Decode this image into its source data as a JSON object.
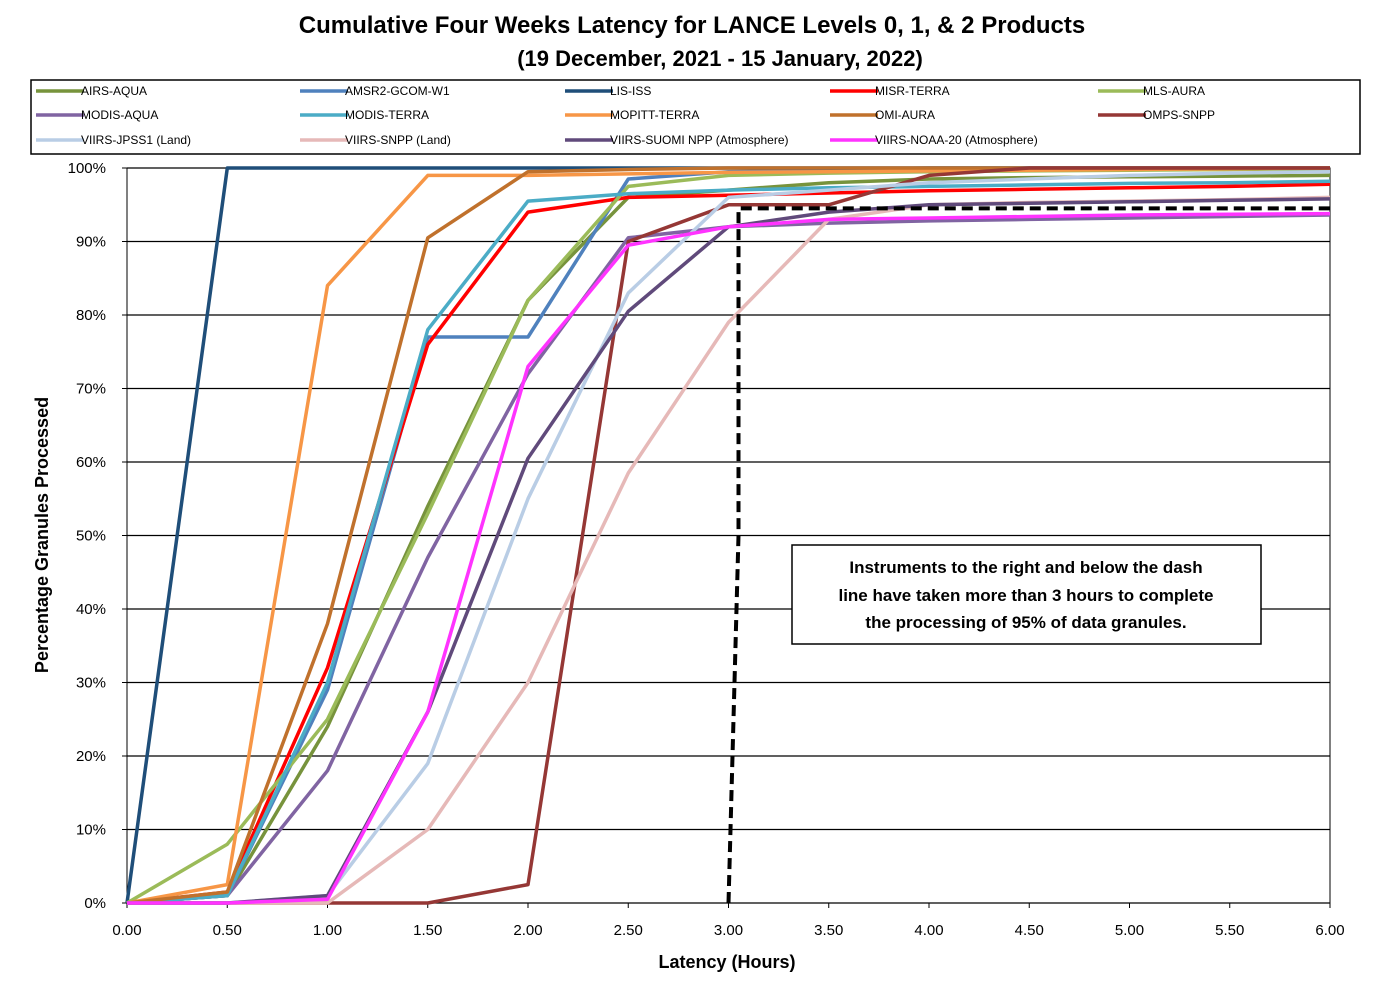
{
  "chart_data": {
    "type": "line",
    "title": "Cumulative Four Weeks Latency  for LANCE Levels 0, 1, & 2 Products",
    "subtitle": "(19 December, 2021  -  15 January, 2022)",
    "xlabel": "Latency (Hours)",
    "ylabel": "Percentage Granules Processed",
    "xlim": [
      0,
      6
    ],
    "ylim": [
      0,
      100
    ],
    "x_ticks": [
      "0.00",
      "0.50",
      "1.00",
      "1.50",
      "2.00",
      "2.50",
      "3.00",
      "3.50",
      "4.00",
      "4.50",
      "5.00",
      "5.50",
      "6.00"
    ],
    "y_ticks": [
      "0%",
      "10%",
      "20%",
      "30%",
      "40%",
      "50%",
      "60%",
      "70%",
      "80%",
      "90%",
      "100%"
    ],
    "grid": "horizontal",
    "legend_position": "top",
    "x": [
      0,
      0.5,
      1,
      1.5,
      2,
      2.5,
      3,
      3.5,
      4,
      4.5,
      5,
      5.5,
      6
    ],
    "series": [
      {
        "name": "AIRS-AQUA",
        "color": "#77933c",
        "values": [
          0,
          1,
          24,
          54,
          82,
          96,
          97,
          98,
          98.5,
          98.7,
          98.8,
          98.9,
          99
        ]
      },
      {
        "name": "AMSR2-GCOM-W1",
        "color": "#4f81bd",
        "values": [
          0,
          1,
          29,
          77,
          77,
          98.5,
          99.5,
          99.8,
          100,
          100,
          100,
          100,
          100
        ]
      },
      {
        "name": "LIS-ISS",
        "color": "#1f4e79",
        "values": [
          0,
          100,
          100,
          100,
          100,
          100,
          100,
          100,
          100,
          100,
          100,
          100,
          100
        ]
      },
      {
        "name": "MISR-TERRA",
        "color": "#ff0000",
        "values": [
          0,
          1.5,
          32,
          76,
          94,
          96,
          96.3,
          96.6,
          96.9,
          97.1,
          97.3,
          97.5,
          97.8
        ]
      },
      {
        "name": "MLS-AURA",
        "color": "#9bbb59",
        "values": [
          0,
          8,
          25,
          53,
          82,
          97.5,
          99,
          99.3,
          99.5,
          99.6,
          99.7,
          99.8,
          99.9
        ]
      },
      {
        "name": "MODIS-AQUA",
        "color": "#8064a2",
        "values": [
          0,
          1,
          18,
          47,
          72,
          90.5,
          92,
          92.5,
          92.8,
          93,
          93.2,
          93.4,
          93.6
        ]
      },
      {
        "name": "MODIS-TERRA",
        "color": "#4bacc6",
        "values": [
          0,
          1,
          30,
          78,
          95.5,
          96.5,
          97,
          97.3,
          97.5,
          97.7,
          97.9,
          98,
          98.2
        ]
      },
      {
        "name": "MOPITT-TERRA",
        "color": "#f79646",
        "values": [
          0,
          2.5,
          84,
          99,
          99,
          99.2,
          99.4,
          99.5,
          99.6,
          99.7,
          99.8,
          99.9,
          100
        ]
      },
      {
        "name": "OMI-AURA",
        "color": "#c0712c",
        "values": [
          0,
          1.5,
          38,
          90.5,
          99.5,
          99.8,
          100,
          100,
          100,
          100,
          100,
          100,
          100
        ]
      },
      {
        "name": "OMPS-SNPP",
        "color": "#953735",
        "values": [
          0,
          0,
          0,
          0,
          2.5,
          90,
          95,
          95,
          99,
          100,
          100,
          100,
          100
        ]
      },
      {
        "name": "VIIRS-JPSS1 (Land)",
        "color": "#b9cde5",
        "values": [
          0,
          0,
          1,
          19,
          55,
          83,
          96,
          97,
          98,
          98.5,
          99,
          99.3,
          99.5
        ]
      },
      {
        "name": "VIIRS-SNPP (Land)",
        "color": "#e6b9b8",
        "values": [
          0,
          0,
          0,
          10,
          30,
          58.5,
          79,
          93,
          95,
          95.3,
          95.5,
          95.7,
          96
        ]
      },
      {
        "name": "VIIRS-SUOMI NPP (Atmosphere)",
        "color": "#604a7b",
        "values": [
          0,
          0,
          1,
          26,
          60.5,
          80.5,
          92,
          94,
          95,
          95.2,
          95.4,
          95.6,
          95.8
        ]
      },
      {
        "name": "VIIRS-NOAA-20 (Atmosphere)",
        "color": "#ff33ff",
        "values": [
          0,
          0,
          0.5,
          26,
          73,
          89.5,
          92,
          93,
          93.2,
          93.4,
          93.6,
          93.7,
          93.8
        ]
      }
    ],
    "threshold_line": {
      "x": [
        3.0,
        3.05,
        3.05,
        6.0
      ],
      "y": [
        0,
        50,
        94.5,
        94.5
      ]
    },
    "annotation": [
      "Instruments to the right and below the dash",
      "line have taken more than 3 hours to complete",
      "the processing of 95% of data granules."
    ]
  }
}
